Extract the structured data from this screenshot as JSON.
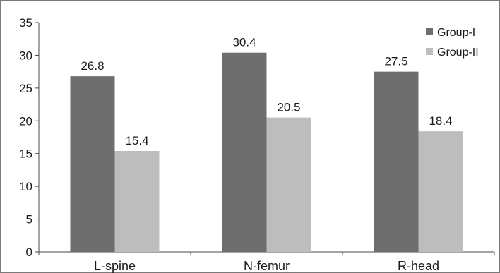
{
  "chart_data": {
    "type": "bar",
    "categories": [
      "L-spine",
      "N-femur",
      "R-head"
    ],
    "series": [
      {
        "name": "Group-I",
        "values": [
          26.8,
          30.4,
          27.5
        ],
        "color": "#6e6e6e"
      },
      {
        "name": "Group-II",
        "values": [
          15.4,
          20.5,
          18.4
        ],
        "color": "#bdbdbd"
      }
    ],
    "title": "",
    "xlabel": "",
    "ylabel": "",
    "ylim": [
      0,
      35
    ],
    "yticks": [
      0,
      5,
      10,
      15,
      20,
      25,
      30,
      35
    ],
    "data_labels": true,
    "grid": false,
    "legend_position": "top-right"
  }
}
